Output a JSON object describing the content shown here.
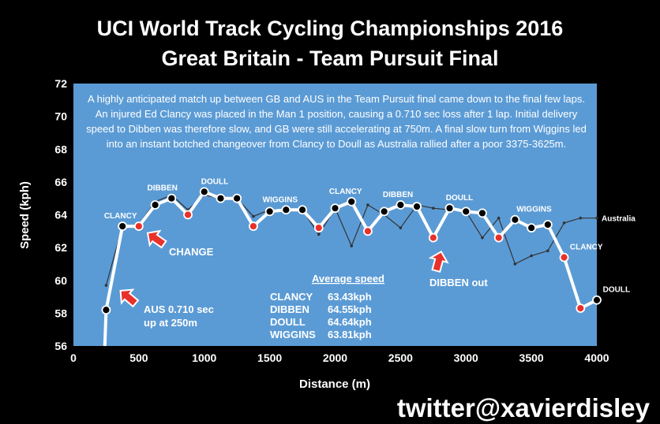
{
  "chart_data": {
    "type": "line",
    "title_line1": "UCI World Track Cycling Championships 2016",
    "title_line2": "Great Britain - Team Pursuit Final",
    "xlabel": "Distance (m)",
    "ylabel": "Speed (kph)",
    "xlim": [
      0,
      4000
    ],
    "ylim": [
      56,
      72
    ],
    "xticks": [
      "0",
      "500",
      "1000",
      "1500",
      "2000",
      "2500",
      "3000",
      "3500",
      "4000"
    ],
    "yticks": [
      "56",
      "58",
      "60",
      "62",
      "64",
      "66",
      "68",
      "70",
      "72"
    ],
    "grid": false,
    "background": "#5b9bd5",
    "series": [
      {
        "name": "Australia",
        "color": "#333333",
        "points": [
          [
            250,
            59.7
          ],
          [
            375,
            63.3
          ],
          [
            500,
            63.4
          ],
          [
            625,
            64.8
          ],
          [
            750,
            65.2
          ],
          [
            875,
            64.3
          ],
          [
            1000,
            65.2
          ],
          [
            1125,
            65.0
          ],
          [
            1250,
            65.0
          ],
          [
            1375,
            63.9
          ],
          [
            1500,
            64.3
          ],
          [
            1625,
            64.3
          ],
          [
            1750,
            64.3
          ],
          [
            1875,
            62.8
          ],
          [
            2000,
            64.4
          ],
          [
            2125,
            62.1
          ],
          [
            2250,
            64.6
          ],
          [
            2375,
            64.0
          ],
          [
            2500,
            63.2
          ],
          [
            2625,
            64.6
          ],
          [
            2750,
            64.4
          ],
          [
            2875,
            64.3
          ],
          [
            3000,
            64.2
          ],
          [
            3125,
            62.6
          ],
          [
            3250,
            63.8
          ],
          [
            3375,
            61.0
          ],
          [
            3500,
            61.5
          ],
          [
            3625,
            61.8
          ],
          [
            3750,
            63.5
          ],
          [
            3875,
            63.8
          ],
          [
            4000,
            63.8
          ]
        ]
      },
      {
        "name": "Great Britain",
        "color": "#ffffff",
        "points": [
          [
            240,
            56.0
          ],
          [
            250,
            58.2
          ],
          [
            375,
            63.3
          ],
          [
            500,
            63.3
          ],
          [
            625,
            64.6
          ],
          [
            750,
            65.0
          ],
          [
            875,
            64.0
          ],
          [
            1000,
            65.4
          ],
          [
            1125,
            65.0
          ],
          [
            1250,
            65.0
          ],
          [
            1375,
            63.3
          ],
          [
            1500,
            64.2
          ],
          [
            1625,
            64.3
          ],
          [
            1750,
            64.3
          ],
          [
            1875,
            63.2
          ],
          [
            2000,
            64.4
          ],
          [
            2125,
            64.8
          ],
          [
            2250,
            63.0
          ],
          [
            2375,
            64.2
          ],
          [
            2500,
            64.6
          ],
          [
            2625,
            64.5
          ],
          [
            2750,
            62.6
          ],
          [
            2875,
            64.4
          ],
          [
            3000,
            64.2
          ],
          [
            3125,
            64.1
          ],
          [
            3250,
            62.6
          ],
          [
            3375,
            63.7
          ],
          [
            3500,
            63.2
          ],
          [
            3625,
            63.4
          ],
          [
            3750,
            61.4
          ],
          [
            3875,
            58.3
          ],
          [
            4000,
            58.8
          ]
        ],
        "changeover_marker_x": [
          500,
          875,
          1375,
          1875,
          2250,
          2750,
          3250,
          3750,
          3875
        ]
      }
    ],
    "series_labels": [
      {
        "text": "Australia",
        "x": 4000,
        "y": 63.8
      }
    ],
    "rider_labels": [
      {
        "text": "CLANCY",
        "x": 360,
        "y": 63.3
      },
      {
        "text": "DIBBEN",
        "x": 680,
        "y": 65.0
      },
      {
        "text": "DOULL",
        "x": 1080,
        "y": 65.4
      },
      {
        "text": "WIGGINS",
        "x": 1580,
        "y": 64.3
      },
      {
        "text": "CLANCY",
        "x": 2080,
        "y": 64.8
      },
      {
        "text": "DIBBEN",
        "x": 2480,
        "y": 64.6
      },
      {
        "text": "DOULL",
        "x": 2950,
        "y": 64.4
      },
      {
        "text": "WIGGINS",
        "x": 3520,
        "y": 63.7
      },
      {
        "text": "CLANCY",
        "x": 3920,
        "y": 61.4
      },
      {
        "text": "DOULL",
        "x": 4150,
        "y": 58.8
      }
    ],
    "annotation": "A highly anticipated match up between GB and AUS in the Team Pursuit final came down to the final few laps. An injured Ed Clancy was placed in the Man 1 position, causing a 0.710 sec loss after 1 lap. Initial delivery speed to Dibben was therefore slow, and GB were still accelerating at 750m. A final slow turn from Wiggins led into an instant botched changeover from Clancy to Doull as Australia rallied after a poor 3375-3625m.",
    "callouts": {
      "change": "CHANGE",
      "aus_line1": "AUS 0.710 sec",
      "aus_line2": "up at 250m",
      "dibben": "DIBBEN out"
    },
    "average_speed": {
      "title": "Average speed",
      "rows": [
        {
          "name": "CLANCY",
          "value": "63.43kph"
        },
        {
          "name": "DIBBEN",
          "value": "64.55kph"
        },
        {
          "name": "DOULL",
          "value": "64.64kph"
        },
        {
          "name": "WIGGINS",
          "value": "63.81kph"
        }
      ]
    }
  },
  "footer": {
    "handle": "twitter@xavierdisley"
  },
  "colors": {
    "page_background": "#000000",
    "plot_background": "#5b9bd5",
    "gb_marker": "#000000",
    "changeover_marker": "#e8312a",
    "arrow": "#e8312a"
  }
}
